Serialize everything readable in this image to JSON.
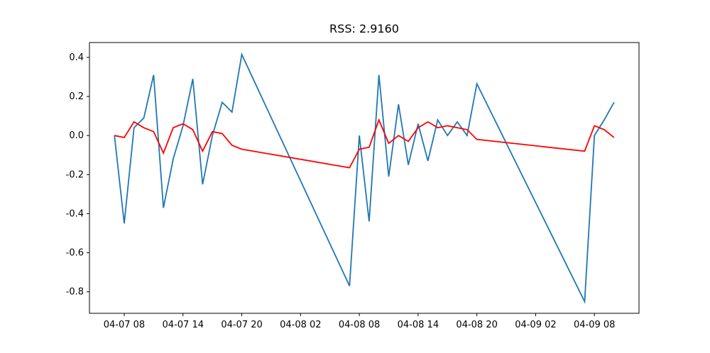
{
  "chart_data": {
    "type": "line",
    "title": "RSS: 2.9160",
    "x": [
      "04-07 07",
      "04-07 08",
      "04-07 09",
      "04-07 10",
      "04-07 11",
      "04-07 12",
      "04-07 13",
      "04-07 14",
      "04-07 15",
      "04-07 16",
      "04-07 17",
      "04-07 18",
      "04-07 19",
      "04-07 20",
      "04-08 07",
      "04-08 08",
      "04-08 09",
      "04-08 10",
      "04-08 11",
      "04-08 12",
      "04-08 13",
      "04-08 14",
      "04-08 15",
      "04-08 16",
      "04-08 17",
      "04-08 18",
      "04-08 19",
      "04-08 20",
      "04-09 07",
      "04-09 08",
      "04-09 09",
      "04-09 10"
    ],
    "series": [
      {
        "color": "#1f77b4",
        "values": [
          0,
          -0.45,
          0.04,
          0.09,
          0.31,
          -0.37,
          -0.12,
          0.05,
          0.29,
          -0.25,
          0.0,
          0.17,
          0.12,
          0.415,
          -0.77,
          0.0,
          -0.44,
          0.31,
          -0.21,
          0.16,
          -0.15,
          0.06,
          -0.13,
          0.08,
          0.0,
          0.07,
          0.0,
          0.265,
          -0.85,
          0.0,
          0.08,
          0.17
        ]
      },
      {
        "color": "red",
        "values": [
          0,
          -0.01,
          0.07,
          0.04,
          0.02,
          -0.09,
          0.04,
          0.06,
          0.03,
          -0.08,
          0.02,
          0.01,
          -0.05,
          -0.07,
          -0.165,
          -0.07,
          -0.06,
          0.08,
          -0.04,
          0.0,
          -0.03,
          0.04,
          0.07,
          0.04,
          0.05,
          0.04,
          0.03,
          -0.02,
          -0.08,
          0.05,
          0.03,
          -0.01
        ]
      }
    ],
    "ylim": [
      -0.91,
      0.476
    ],
    "yticks": [
      -0.8,
      -0.6,
      -0.4,
      -0.2,
      {
        "value": 0,
        "label": "0.0"
      },
      0.2,
      0.4
    ],
    "xticks": [
      "04-07 08",
      "04-07 14",
      "04-07 20",
      "04-08 02",
      "04-08 08",
      "04-08 14",
      "04-08 20",
      "04-09 02",
      "04-09 08"
    ]
  }
}
